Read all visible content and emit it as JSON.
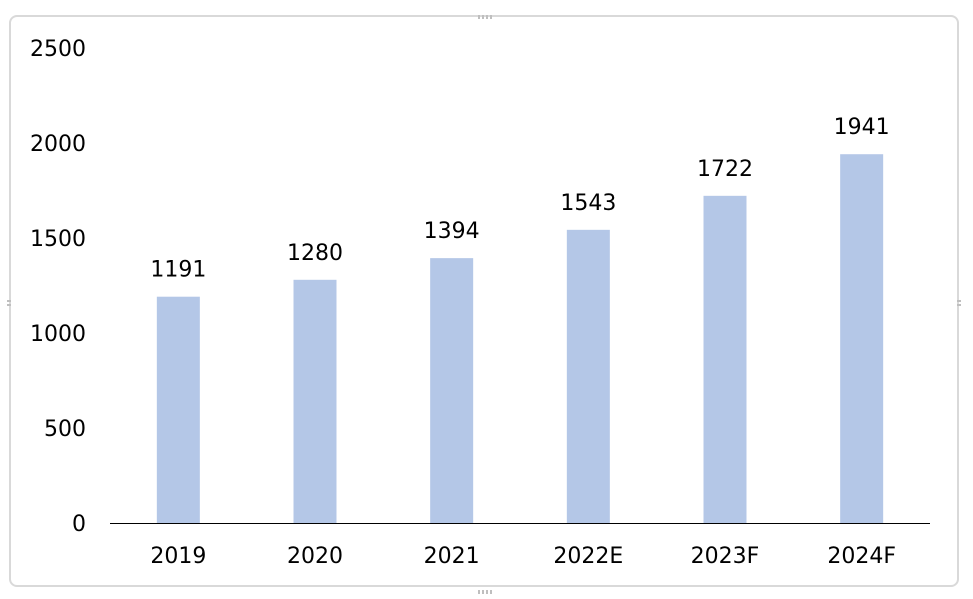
{
  "chart_data": {
    "type": "bar",
    "title": "",
    "xlabel": "",
    "ylabel": "",
    "categories": [
      "2019",
      "2020",
      "2021",
      "2022E",
      "2023F",
      "2024F"
    ],
    "values": [
      1191,
      1280,
      1394,
      1543,
      1722,
      1941
    ],
    "data_labels": [
      "1191",
      "1280",
      "1394",
      "1543",
      "1722",
      "1941"
    ],
    "ylim": [
      0,
      2500
    ],
    "yticks": [
      "0",
      "500",
      "1000",
      "1500",
      "2000",
      "2500"
    ],
    "ytick_values": [
      0,
      500,
      1000,
      1500,
      2000,
      2500
    ],
    "grid": false,
    "legend": "none",
    "bar_color": "#b4c7e7",
    "axis_color": "#000000"
  }
}
